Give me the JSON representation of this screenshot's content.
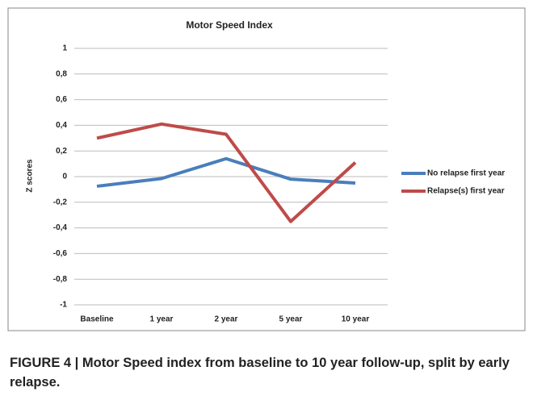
{
  "chart_data": {
    "type": "line",
    "title": "Motor Speed Index",
    "ylabel": "Z scores",
    "categories": [
      "Baseline",
      "1 year",
      "2 year",
      "5 year",
      "10 year"
    ],
    "series": [
      {
        "name": "No relapse first year",
        "color": "#4a7ebb",
        "values": [
          -0.075,
          -0.015,
          0.14,
          -0.02,
          -0.05
        ]
      },
      {
        "name": "Relapse(s) first year",
        "color": "#be4b48",
        "values": [
          0.3,
          0.41,
          0.33,
          -0.35,
          0.11
        ]
      }
    ],
    "ylim": [
      -1,
      1
    ],
    "yticks": [
      -1,
      {
        "value": -0.8,
        "label": "-0,8"
      },
      {
        "value": -0.6,
        "label": "-0,6"
      },
      {
        "value": -0.4,
        "label": "-0,4"
      },
      {
        "value": -0.2,
        "label": "-0,2"
      },
      0,
      {
        "value": 0.2,
        "label": "0,2"
      },
      {
        "value": 0.4,
        "label": "0,4"
      },
      {
        "value": 0.6,
        "label": "0,6"
      },
      {
        "value": 0.8,
        "label": "0,8"
      },
      1
    ],
    "grid": true,
    "legend": "right"
  },
  "caption": "FIGURE 4 | Motor Speed index from baseline to 10 year follow-up, split by early relapse."
}
